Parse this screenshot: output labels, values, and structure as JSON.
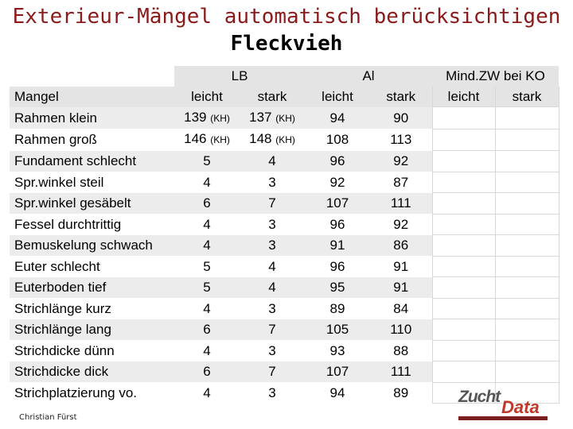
{
  "title": {
    "line1": "Exterieur-Mängel automatisch berücksichtigen",
    "line2": "Fleckvieh"
  },
  "table": {
    "groups": {
      "lb": "LB",
      "al": "Al",
      "ko": "Mind.ZW bei KO"
    },
    "subheaders": {
      "mangel": "Mangel",
      "lb_leicht": "leicht",
      "lb_stark": "stark",
      "al_leicht": "leicht",
      "al_stark": "stark",
      "ko_leicht": "leicht",
      "ko_stark": "stark"
    },
    "kh_suffix": "(KH)",
    "rows": [
      {
        "mangel": "Rahmen klein",
        "lb_leicht": "139",
        "lb_leicht_kh": true,
        "lb_stark": "137",
        "lb_stark_kh": true,
        "al_leicht": "94",
        "al_stark": "90"
      },
      {
        "mangel": "Rahmen groß",
        "lb_leicht": "146",
        "lb_leicht_kh": true,
        "lb_stark": "148",
        "lb_stark_kh": true,
        "al_leicht": "108",
        "al_stark": "113"
      },
      {
        "mangel": "Fundament schlecht",
        "lb_leicht": "5",
        "lb_stark": "4",
        "al_leicht": "96",
        "al_stark": "92"
      },
      {
        "mangel": "Spr.winkel steil",
        "lb_leicht": "4",
        "lb_stark": "3",
        "al_leicht": "92",
        "al_stark": "87"
      },
      {
        "mangel": "Spr.winkel gesäbelt",
        "lb_leicht": "6",
        "lb_stark": "7",
        "al_leicht": "107",
        "al_stark": "111"
      },
      {
        "mangel": "Fessel durchtrittig",
        "lb_leicht": "4",
        "lb_stark": "3",
        "al_leicht": "96",
        "al_stark": "92"
      },
      {
        "mangel": "Bemuskelung schwach",
        "lb_leicht": "4",
        "lb_stark": "3",
        "al_leicht": "91",
        "al_stark": "86"
      },
      {
        "mangel": "Euter schlecht",
        "lb_leicht": "5",
        "lb_stark": "4",
        "al_leicht": "96",
        "al_stark": "91"
      },
      {
        "mangel": "Euterboden tief",
        "lb_leicht": "5",
        "lb_stark": "4",
        "al_leicht": "95",
        "al_stark": "91"
      },
      {
        "mangel": "Strichlänge kurz",
        "lb_leicht": "4",
        "lb_stark": "3",
        "al_leicht": "89",
        "al_stark": "84"
      },
      {
        "mangel": "Strichlänge lang",
        "lb_leicht": "6",
        "lb_stark": "7",
        "al_leicht": "105",
        "al_stark": "110"
      },
      {
        "mangel": "Strichdicke dünn",
        "lb_leicht": "4",
        "lb_stark": "3",
        "al_leicht": "93",
        "al_stark": "88"
      },
      {
        "mangel": "Strichdicke dick",
        "lb_leicht": "6",
        "lb_stark": "7",
        "al_leicht": "107",
        "al_stark": "111"
      },
      {
        "mangel": "Strichplatzierung vo.",
        "lb_leicht": "4",
        "lb_stark": "3",
        "al_leicht": "94",
        "al_stark": "89"
      }
    ]
  },
  "footer": {
    "author": "Christian Fürst"
  },
  "logo": {
    "zucht": "Zucht",
    "data": "Data",
    "colors": {
      "zucht": "#555555",
      "data": "#c0392b",
      "bar": "#7a1f1f"
    }
  },
  "colors": {
    "title": "#8b1a1a",
    "stripe": "#ececec",
    "header": "#e4e4e4"
  }
}
